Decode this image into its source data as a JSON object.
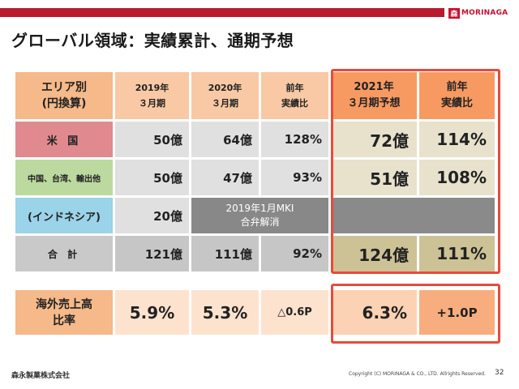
{
  "header": {
    "brand": "MORINAGA",
    "brand_color": "#c8102e",
    "bar_color": "#b81a2e"
  },
  "title": "グローバル領域：実績累計、通期予想",
  "table": {
    "headers": {
      "region": [
        "エリア別",
        "(円換算)"
      ],
      "fy2019": [
        "2019年",
        "３月期"
      ],
      "fy2020": [
        "2020年",
        "３月期"
      ],
      "yoy_prev": [
        "前年",
        "実績比"
      ],
      "fy2021": [
        "2021年",
        "３月期予想"
      ],
      "yoy_next": [
        "前年",
        "実績比"
      ]
    },
    "rows": [
      {
        "label": "米 国",
        "fy2019": "50億",
        "fy2020": "64億",
        "yoy_prev": "128%",
        "fy2021": "72億",
        "yoy_next": "114%"
      },
      {
        "label": "中国、台湾、輸出他",
        "fy2019": "50億",
        "fy2020": "47億",
        "yoy_prev": "93%",
        "fy2021": "51億",
        "yoy_next": "108%"
      },
      {
        "label": "(インドネシア)",
        "fy2019": "20億",
        "note": [
          "2019年1月MKI",
          "合弁解消"
        ]
      },
      {
        "label": "合 計",
        "fy2019": "121億",
        "fy2020": "111億",
        "yoy_prev": "92%",
        "fy2021": "124億",
        "yoy_next": "111%"
      }
    ]
  },
  "ratio": {
    "label": [
      "海外売上高",
      "比率"
    ],
    "fy2019": "5.9%",
    "fy2020": "5.3%",
    "change_prev": "△0.6P",
    "fy2021": "6.3%",
    "change_next": "+1.0P"
  },
  "footer": {
    "company": "森永製菓株式会社",
    "copyright": "Copyright (C) MORINAGA & CO., LTD. Allrights Reserved.",
    "page": "32"
  },
  "highlight_color": "#ea4a3b"
}
